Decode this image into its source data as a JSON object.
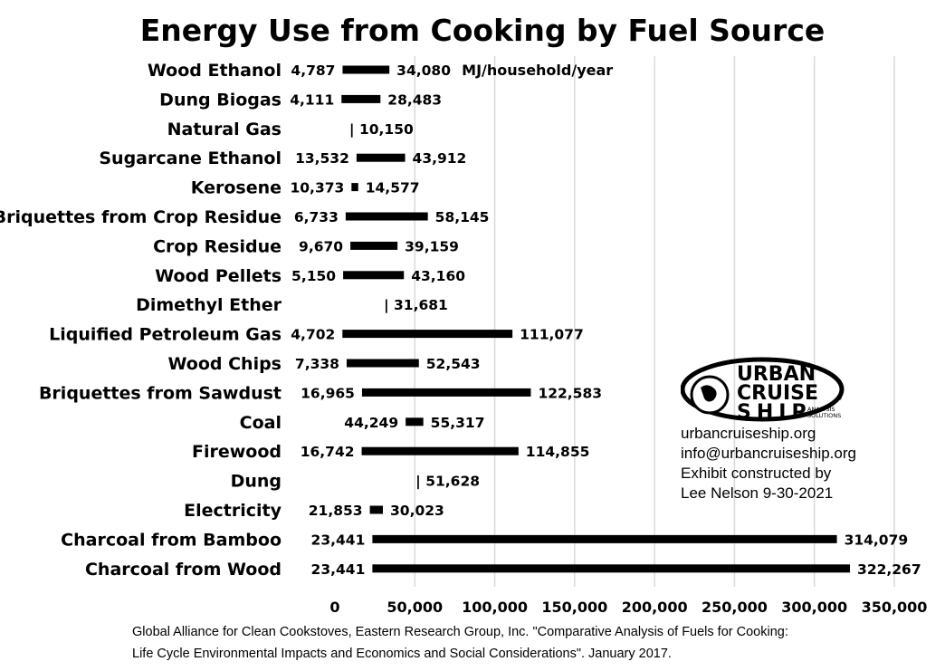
{
  "chart_data": {
    "type": "bar",
    "orientation": "horizontal-range",
    "title": "Energy Use from Cooking by Fuel Source",
    "unit": "MJ/household/year",
    "categories": [
      "Wood Ethanol",
      "Dung Biogas",
      "Natural Gas",
      "Sugarcane Ethanol",
      "Kerosene",
      "Briquettes from Crop Residue",
      "Crop Residue",
      "Wood Pellets",
      "Dimethyl Ether",
      "Liquified Petroleum Gas",
      "Wood Chips",
      "Briquettes from Sawdust",
      "Coal",
      "Firewood",
      "Dung",
      "Electricity",
      "Charcoal from Bamboo",
      "Charcoal from Wood"
    ],
    "low_values": [
      4787,
      4111,
      null,
      13532,
      10373,
      6733,
      9670,
      5150,
      null,
      4702,
      7338,
      16965,
      44249,
      16742,
      null,
      21853,
      23441,
      23441
    ],
    "low_labels": [
      "4,787",
      "4,111",
      "",
      "13,532",
      "10,373",
      "6,733",
      "9,670",
      "5,150",
      "",
      "4,702",
      "7,338",
      "16,965",
      "44,249",
      "16,742",
      "",
      "21,853",
      "23,441",
      "23,441"
    ],
    "high_values": [
      34080,
      28483,
      10150,
      43912,
      14577,
      58145,
      39159,
      43160,
      31681,
      111077,
      52543,
      122583,
      55317,
      114855,
      51628,
      30023,
      314079,
      322267
    ],
    "high_labels": [
      "34,080",
      "28,483",
      "| 10,150",
      "43,912",
      "14,577",
      "58,145",
      "39,159",
      "43,160",
      "| 31,681",
      "111,077",
      "52,543",
      "122,583",
      "55,317",
      "114,855",
      "| 51,628",
      "30,023",
      "314,079",
      "322,267"
    ],
    "xlim": [
      0,
      350000
    ],
    "xticks": [
      0,
      50000,
      100000,
      150000,
      200000,
      250000,
      300000,
      350000
    ],
    "xtick_labels": [
      "0",
      "50,000",
      "100,000",
      "150,000",
      "200,000",
      "250,000",
      "300,000",
      "350,000"
    ],
    "grid": "vertical",
    "legend": "none",
    "bar_color": "#000000",
    "grid_color": "#d9d9d9"
  },
  "logo": {
    "line1": "URBAN",
    "line2": "CRUISE",
    "line3": "SHIP",
    "tag1": "ANALYSIS",
    "tag2": "SOLUTIONS",
    "mark": "®"
  },
  "contact": {
    "website": "urbancruiseship.org",
    "email": "info@urbancruiseship.org",
    "credit1": "Exhibit constructed by",
    "credit2": "Lee Nelson 9-30-2021"
  },
  "source": {
    "line1": "Global Alliance for Clean Cookstoves, Eastern Research Group, Inc. \"Comparative Analysis of Fuels for Cooking:",
    "line2": "Life Cycle Environmental Impacts and Economics and Social Considerations\". January 2017."
  }
}
